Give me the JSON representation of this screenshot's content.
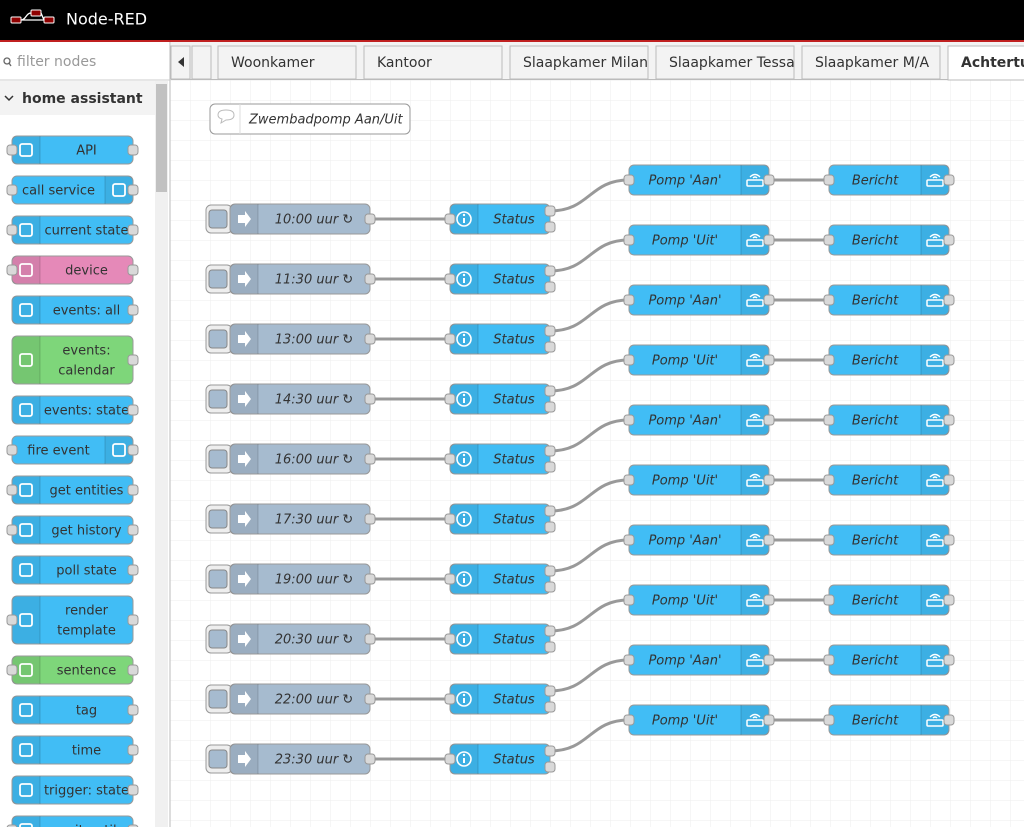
{
  "header": {
    "title": "Node-RED"
  },
  "palette": {
    "filter_placeholder": "filter nodes",
    "category": "home assistant",
    "nodes": [
      {
        "lines": [
          "API"
        ],
        "color": "#41bdf5",
        "input": true
      },
      {
        "lines": [
          "call service"
        ],
        "color": "#41bdf5",
        "input": true,
        "icon_side": "right"
      },
      {
        "lines": [
          "current state"
        ],
        "color": "#41bdf5",
        "input": true
      },
      {
        "lines": [
          "device"
        ],
        "color": "#e589b8",
        "input": true
      },
      {
        "lines": [
          "events: all"
        ],
        "color": "#41bdf5",
        "input": false
      },
      {
        "lines": [
          "events:",
          "calendar"
        ],
        "color": "#7ed67a",
        "input": false
      },
      {
        "lines": [
          "events: state"
        ],
        "color": "#41bdf5",
        "input": false
      },
      {
        "lines": [
          "fire event"
        ],
        "color": "#41bdf5",
        "input": true,
        "icon_side": "right"
      },
      {
        "lines": [
          "get entities"
        ],
        "color": "#41bdf5",
        "input": true
      },
      {
        "lines": [
          "get history"
        ],
        "color": "#41bdf5",
        "input": true
      },
      {
        "lines": [
          "poll state"
        ],
        "color": "#41bdf5",
        "input": false
      },
      {
        "lines": [
          "render",
          "template"
        ],
        "color": "#41bdf5",
        "input": true
      },
      {
        "lines": [
          "sentence"
        ],
        "color": "#7ed67a",
        "input": true
      },
      {
        "lines": [
          "tag"
        ],
        "color": "#41bdf5",
        "input": false
      },
      {
        "lines": [
          "time"
        ],
        "color": "#41bdf5",
        "input": false
      },
      {
        "lines": [
          "trigger: state"
        ],
        "color": "#41bdf5",
        "input": false
      },
      {
        "lines": [
          "wait until"
        ],
        "color": "#41bdf5",
        "input": true
      }
    ]
  },
  "tabs": [
    "Woonkamer",
    "Kantoor",
    "Slaapkamer Milan",
    "Slaapkamer Tessa",
    "Slaapkamer M/A",
    "Achtertuin"
  ],
  "active_tab": 5,
  "workspace": {
    "comment": "Zwembadpomp Aan/Uit",
    "flows": [
      {
        "inject": "10:00 uur ↻",
        "status": "Status",
        "action": "Pomp 'Aan'",
        "notify": "Bericht"
      },
      {
        "inject": "11:30 uur ↻",
        "status": "Status",
        "action": "Pomp 'Uit'",
        "notify": "Bericht"
      },
      {
        "inject": "13:00 uur ↻",
        "status": "Status",
        "action": "Pomp 'Aan'",
        "notify": "Bericht"
      },
      {
        "inject": "14:30 uur ↻",
        "status": "Status",
        "action": "Pomp 'Uit'",
        "notify": "Bericht"
      },
      {
        "inject": "16:00 uur ↻",
        "status": "Status",
        "action": "Pomp 'Aan'",
        "notify": "Bericht"
      },
      {
        "inject": "17:30 uur ↻",
        "status": "Status",
        "action": "Pomp 'Uit'",
        "notify": "Bericht"
      },
      {
        "inject": "19:00 uur ↻",
        "status": "Status",
        "action": "Pomp 'Aan'",
        "notify": "Bericht"
      },
      {
        "inject": "20:30 uur ↻",
        "status": "Status",
        "action": "Pomp 'Uit'",
        "notify": "Bericht"
      },
      {
        "inject": "22:00 uur ↻",
        "status": "Status",
        "action": "Pomp 'Aan'",
        "notify": "Bericht"
      },
      {
        "inject": "23:30 uur ↻",
        "status": "Status",
        "action": "Pomp 'Uit'",
        "notify": "Bericht"
      }
    ]
  }
}
